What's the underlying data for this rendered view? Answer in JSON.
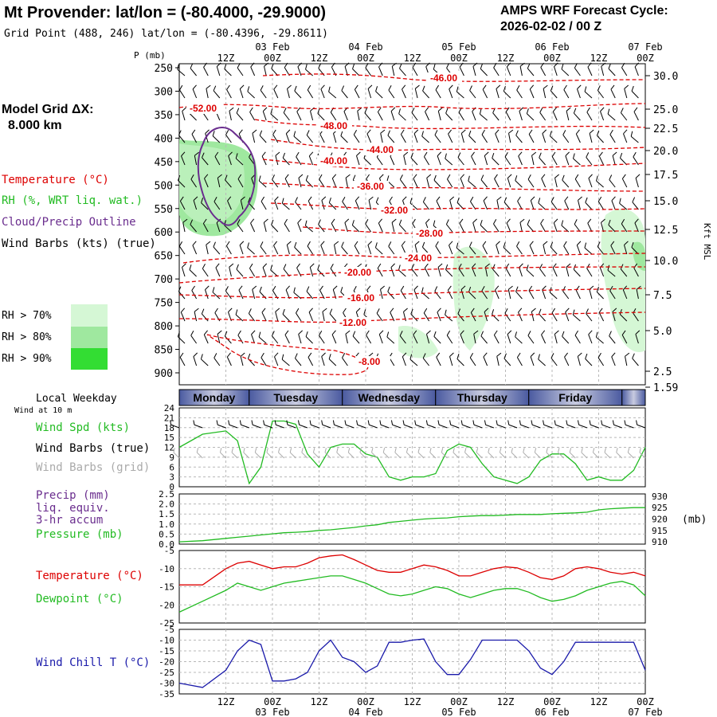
{
  "header": {
    "title": "Mt Provender:  lat/lon = (-80.4000, -29.9000)",
    "subtitle": "Grid Point (488, 246) lat/lon = (-80.4396, -29.8611)",
    "cycle_line1": "AMPS WRF Forecast Cycle:",
    "cycle_line2": "2026-02-02 / 00  Z",
    "model_grid_label": "Model Grid ΔX:",
    "model_grid_value": "8.000 km"
  },
  "time_axis": {
    "ticks_top_row": [
      "12Z",
      "00Z",
      "12Z",
      "00Z",
      "12Z",
      "00Z",
      "12Z",
      "00Z",
      "12Z",
      "00Z"
    ],
    "date_labels": [
      "03 Feb",
      "04 Feb",
      "05 Feb",
      "06 Feb",
      "07 Feb"
    ],
    "weekdays": [
      "Monday",
      "Tuesday",
      "Wednesday",
      "Thursday",
      "Friday"
    ],
    "local_weekday_label": "Local Weekday"
  },
  "colors": {
    "temperature": "#dd0000",
    "rh": "#22bb22",
    "cloud": "#6a2d8e",
    "wind_chill": "#1a1aaa",
    "rh70": "#d5f7d5",
    "rh80": "#9fe89f",
    "rh90": "#33dd33",
    "grid": "#b8b8b8",
    "weekday_bar": "#4a5aa0"
  },
  "cross_section": {
    "pressure_axis_title": "P (mb)",
    "pressure_ticks": [
      "250",
      "300",
      "350",
      "400",
      "450",
      "500",
      "550",
      "600",
      "650",
      "700",
      "750",
      "800",
      "850",
      "900"
    ],
    "height_axis_title": "Kft MSL",
    "height_ticks": [
      "30.0",
      "25.0",
      "22.5",
      "20.0",
      "17.5",
      "15.0",
      "12.5",
      "10.0",
      "7.5",
      "5.0",
      "2.5",
      "1.59"
    ],
    "temperature_contours": [
      "-46.00",
      "-52.00",
      "-48.00",
      "-44.00",
      "-40.00",
      "-36.00",
      "-32.00",
      "-28.00",
      "-24.00",
      "-20.00",
      "-16.00",
      "-12.00",
      "-8.00"
    ],
    "legend": {
      "temperature": "Temperature (°C)",
      "rh": "RH (%, WRT liq. wat.)",
      "cloud": "Cloud/Precip Outline",
      "wind": "Wind Barbs (kts) (true)",
      "rh70": "RH > 70%",
      "rh80": "RH > 80%",
      "rh90": "RH > 90%"
    }
  },
  "wind_panel": {
    "subtitle": "Wind at 10 m",
    "label_speed": "Wind Spd (kts)",
    "label_barbs_true": "Wind Barbs (true)",
    "label_barbs_grid": "Wind Barbs (grid)",
    "yticks": [
      "24",
      "21",
      "18",
      "15",
      "12",
      "9",
      "6",
      "3",
      "0"
    ]
  },
  "precip_panel": {
    "label_precip": "Precip (mm)",
    "label_liq": "liq. equiv.",
    "label_accum": "3-hr accum",
    "label_pressure": "Pressure (mb)",
    "yticks_left": [
      "2.5",
      "2.0",
      "1.5",
      "1.0",
      "0.5",
      "0.0"
    ],
    "yticks_right": [
      "930",
      "925",
      "920",
      "915",
      "910"
    ],
    "right_unit": "(mb)"
  },
  "temp_panel": {
    "label_temp": "Temperature (°C)",
    "label_dew": "Dewpoint (°C)",
    "yticks": [
      "-5",
      "-10",
      "-15",
      "-20",
      "-25"
    ]
  },
  "chill_panel": {
    "label": "Wind Chill T (°C)",
    "yticks": [
      "-5",
      "-10",
      "-15",
      "-20",
      "-25",
      "-30",
      "-35"
    ]
  },
  "chart_data": [
    {
      "type": "line",
      "panel": "wind_speed",
      "x_hours": [
        0,
        6,
        12,
        15,
        18,
        21,
        24,
        27,
        30,
        33,
        36,
        39,
        42,
        45,
        48,
        51,
        54,
        57,
        60,
        63,
        66,
        69,
        72,
        75,
        78,
        81,
        84,
        87,
        90,
        93,
        96,
        99,
        102,
        105,
        108,
        111,
        114,
        117,
        120
      ],
      "series": [
        {
          "name": "Wind Spd (kts)",
          "values": [
            12,
            16,
            17,
            14,
            1,
            6,
            20,
            20,
            19,
            10,
            6,
            12,
            13,
            13,
            10,
            9,
            3,
            2,
            3,
            3,
            4,
            11,
            13,
            12,
            7,
            3,
            2,
            1,
            3,
            8,
            10,
            10,
            7,
            2,
            3,
            2,
            2,
            5,
            12
          ]
        }
      ],
      "ylim": [
        0,
        24
      ]
    },
    {
      "type": "line",
      "panel": "precip_pressure",
      "x_hours": [
        0,
        6,
        12,
        15,
        18,
        21,
        24,
        27,
        30,
        33,
        36,
        39,
        42,
        45,
        48,
        51,
        54,
        57,
        60,
        63,
        66,
        69,
        72,
        75,
        78,
        81,
        84,
        87,
        90,
        93,
        96,
        99,
        102,
        105,
        108,
        111,
        114,
        117,
        120
      ],
      "series": [
        {
          "name": "Pressure (mb)",
          "values": [
            910,
            910.5,
            911.5,
            912,
            912.5,
            913,
            913.5,
            914,
            914.2,
            914.5,
            915,
            915.3,
            915.8,
            916.3,
            917,
            917.5,
            918.5,
            919,
            919.5,
            920,
            920.3,
            920.5,
            921,
            921.3,
            921.5,
            921.5,
            921.7,
            922,
            922,
            922,
            922.3,
            922.5,
            922.7,
            923,
            924,
            924.5,
            924.8,
            925,
            925
          ]
        },
        {
          "name": "Precip (mm)",
          "values": [
            0,
            0,
            0,
            0,
            0,
            0,
            0,
            0,
            0,
            0,
            0,
            0,
            0,
            0,
            0,
            0,
            0,
            0,
            0,
            0,
            0,
            0,
            0,
            0,
            0,
            0,
            0,
            0,
            0,
            0,
            0,
            0,
            0,
            0,
            0,
            0,
            0,
            0,
            0
          ]
        }
      ],
      "ylim": [
        0,
        2.5
      ],
      "y2lim": [
        909,
        931
      ]
    },
    {
      "type": "line",
      "panel": "temperature",
      "x_hours": [
        0,
        6,
        12,
        15,
        18,
        21,
        24,
        27,
        30,
        33,
        36,
        39,
        42,
        45,
        48,
        51,
        54,
        57,
        60,
        63,
        66,
        69,
        72,
        75,
        78,
        81,
        84,
        87,
        90,
        93,
        96,
        99,
        102,
        105,
        108,
        111,
        114,
        117,
        120
      ],
      "series": [
        {
          "name": "Temperature (°C)",
          "values": [
            -14.5,
            -14.5,
            -10,
            -8.5,
            -8,
            -9,
            -10,
            -9.5,
            -9.5,
            -8.5,
            -7,
            -6.5,
            -6.2,
            -7.5,
            -9,
            -10.5,
            -11,
            -11,
            -10,
            -9,
            -9.5,
            -10.5,
            -12,
            -12,
            -11,
            -10,
            -9.5,
            -9.8,
            -11,
            -12.5,
            -13,
            -12,
            -10,
            -9.5,
            -10,
            -11,
            -11.5,
            -11,
            -12
          ]
        },
        {
          "name": "Dewpoint (°C)",
          "values": [
            -22,
            -19,
            -16,
            -14,
            -15,
            -16,
            -15,
            -14,
            -13.5,
            -13,
            -12.5,
            -12,
            -12,
            -13,
            -14,
            -15.5,
            -17,
            -17.5,
            -17,
            -16,
            -15,
            -15.5,
            -17,
            -18,
            -17,
            -16,
            -15.5,
            -15.5,
            -16.5,
            -18,
            -19,
            -18.5,
            -17.5,
            -16,
            -15,
            -14,
            -13.5,
            -14.5,
            -17.5
          ]
        }
      ],
      "ylim": [
        -25,
        -5
      ]
    },
    {
      "type": "line",
      "panel": "wind_chill",
      "x_hours": [
        0,
        6,
        12,
        15,
        18,
        21,
        24,
        27,
        30,
        33,
        36,
        39,
        42,
        45,
        48,
        51,
        54,
        57,
        60,
        63,
        66,
        69,
        72,
        75,
        78,
        81,
        84,
        87,
        90,
        93,
        96,
        99,
        102,
        105,
        108,
        111,
        114,
        117,
        120
      ],
      "series": [
        {
          "name": "Wind Chill T (°C)",
          "values": [
            -30,
            -32,
            -24,
            -15,
            -10,
            -12,
            -29,
            -29,
            -28,
            -25,
            -15,
            -10,
            -18,
            -20,
            -25,
            -22,
            -11,
            -11,
            -10,
            -9.5,
            -20,
            -26,
            -26,
            -19,
            -10,
            -10,
            -10,
            -10,
            -15,
            -23,
            -26,
            -20,
            -11,
            -11,
            -11,
            -11,
            -11,
            -11,
            -24
          ]
        }
      ],
      "ylim": [
        -35,
        -5
      ]
    }
  ]
}
